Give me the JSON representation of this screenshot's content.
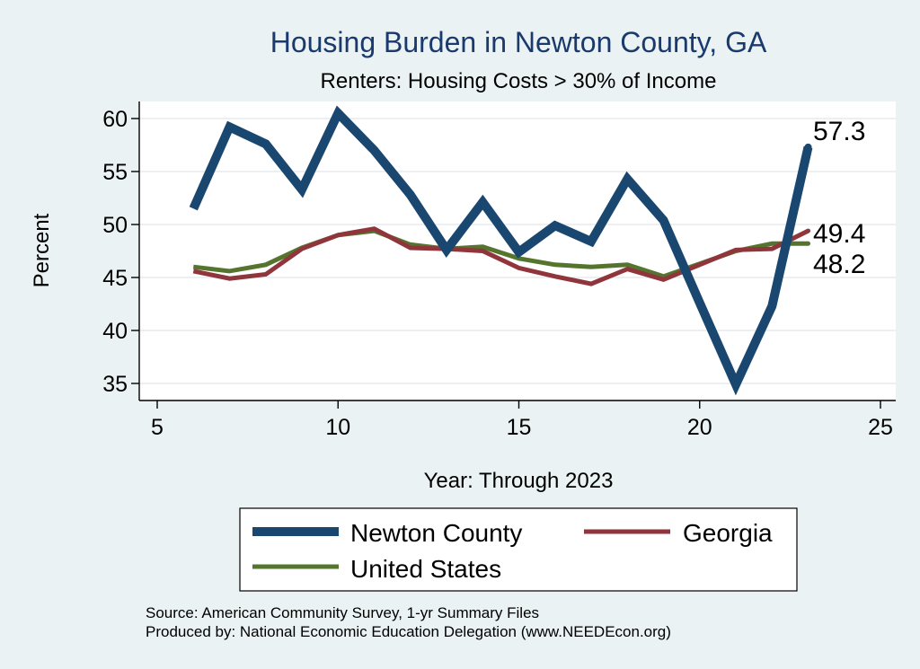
{
  "chart_data": {
    "type": "line",
    "title": "Housing Burden in Newton County, GA",
    "subtitle": "Renters: Housing Costs > 30% of Income",
    "xlabel": "Year: Through 2023",
    "ylabel": "Percent",
    "xlim": [
      5,
      25
    ],
    "ylim": [
      34,
      62
    ],
    "xticks": [
      5,
      10,
      15,
      20,
      25
    ],
    "yticks": [
      35,
      40,
      45,
      50,
      55,
      60
    ],
    "grid": true,
    "legend_position": "bottom",
    "x": [
      6,
      7,
      8,
      9,
      10,
      11,
      12,
      13,
      14,
      15,
      16,
      17,
      18,
      19,
      20,
      21,
      22,
      23
    ],
    "series": [
      {
        "name": "Newton County",
        "color": "#1a476f",
        "values": [
          51.5,
          59.2,
          57.6,
          53.3,
          60.5,
          57.0,
          52.8,
          47.6,
          52.1,
          47.4,
          49.9,
          48.4,
          54.3,
          50.4,
          42.6,
          34.9,
          42.3,
          57.3
        ],
        "end_label": "57.3"
      },
      {
        "name": "Georgia",
        "color": "#90353b",
        "values": [
          45.6,
          44.9,
          45.3,
          47.7,
          49.0,
          49.6,
          47.8,
          47.7,
          47.5,
          45.9,
          45.1,
          44.4,
          45.8,
          44.8,
          46.2,
          47.6,
          47.7,
          49.4
        ],
        "end_label": "49.4"
      },
      {
        "name": "United States",
        "color": "#55752f",
        "values": [
          46.0,
          45.6,
          46.2,
          47.8,
          49.0,
          49.4,
          48.1,
          47.7,
          47.9,
          46.8,
          46.2,
          46.0,
          46.2,
          45.1,
          46.3,
          47.5,
          48.2,
          48.2
        ],
        "end_label": "48.2"
      }
    ],
    "notes": [
      "Source: American Community Survey, 1-yr Summary Files",
      "Produced by: National Economic Education Delegation (www.NEEDEcon.org)"
    ]
  }
}
